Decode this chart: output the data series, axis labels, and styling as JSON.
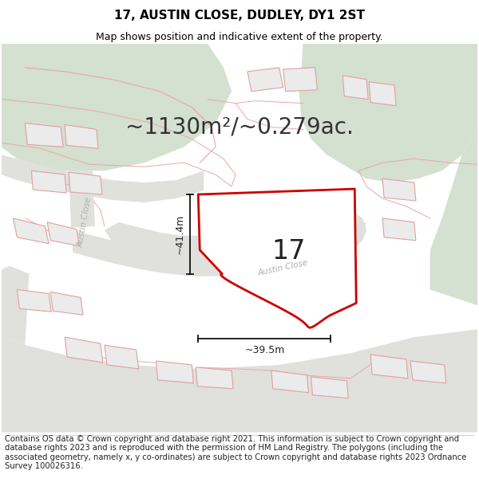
{
  "title": "17, AUSTIN CLOSE, DUDLEY, DY1 2ST",
  "subtitle": "Map shows position and indicative extent of the property.",
  "area_label": "~1130m²/~0.279ac.",
  "plot_number": "17",
  "dim_vertical": "~41.4m",
  "dim_horizontal": "~39.5m",
  "footer_text": "Contains OS data © Crown copyright and database right 2021. This information is subject to Crown copyright and database rights 2023 and is reproduced with the permission of HM Land Registry. The polygons (including the associated geometry, namely x, y co-ordinates) are subject to Crown copyright and database rights 2023 Ordnance Survey 100026316.",
  "bg_color": "#f2f2ee",
  "green_color": "#d4e0d0",
  "road_color": "#e0e0dc",
  "plot_fill": "#ffffff",
  "plot_border": "#cc0000",
  "prop_fill": "#eeeeee",
  "prop_edge": "#e8a8a8",
  "dim_line_color": "#111111",
  "road_label_color": "#aaaaaa",
  "title_fontsize": 11,
  "subtitle_fontsize": 9,
  "area_fontsize": 20,
  "plot_num_fontsize": 24,
  "dim_fontsize": 9,
  "footer_fontsize": 7.2
}
